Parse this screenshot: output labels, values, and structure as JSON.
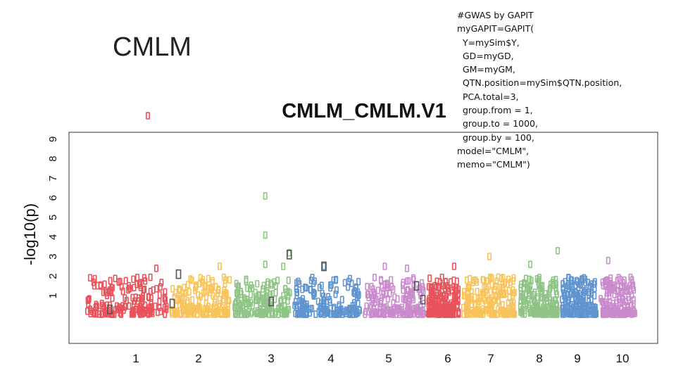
{
  "slide": {
    "title": "CMLM",
    "code_lines": [
      "#GWAS by GAPIT",
      "myGAPIT=GAPIT(",
      "  Y=mySim$Y,",
      "  GD=myGD,",
      "  GM=myGM,",
      "  QTN.position=mySim$QTN.position,",
      "  PCA.total=3,",
      "  group.from = 1,",
      "  group.to = 1000,",
      "  group.by = 100,",
      "model=\"CMLM\",",
      "memo=\"CMLM\")"
    ]
  },
  "chart_data": {
    "type": "scatter",
    "subtype": "manhattan",
    "title": "CMLM_CMLM.V1",
    "xlabel": "",
    "ylabel": "-log10(p)",
    "x_tick_labels": [
      "1",
      "2",
      "3",
      "4",
      "5",
      "6",
      "7",
      "8",
      "9",
      "10"
    ],
    "y_ticks": [
      1,
      2,
      3,
      4,
      5,
      6,
      7,
      8,
      9
    ],
    "ylim": [
      0,
      10.5
    ],
    "grid": false,
    "legend": "none",
    "colors": [
      "#e8525a",
      "#f7c35a",
      "#8fc486",
      "#5f94cf",
      "#c98bcc",
      "#e8525a",
      "#f7c35a",
      "#8fc486",
      "#5f94cf",
      "#c98bcc"
    ],
    "highlight_color": "#555555",
    "points_per_chromosome": 170,
    "peaks": [
      {
        "chromosome": 1,
        "pos": 0.75,
        "value": 10.2
      },
      {
        "chromosome": 1,
        "pos": 0.85,
        "value": 2.4
      },
      {
        "chromosome": 2,
        "pos": 0.8,
        "value": 2.5
      },
      {
        "chromosome": 3,
        "pos": 0.55,
        "value": 6.1
      },
      {
        "chromosome": 3,
        "pos": 0.55,
        "value": 4.1
      },
      {
        "chromosome": 3,
        "pos": 0.55,
        "value": 2.6
      },
      {
        "chromosome": 3,
        "pos": 0.85,
        "value": 2.5
      },
      {
        "chromosome": 3,
        "pos": 0.95,
        "value": 3.2
      },
      {
        "chromosome": 4,
        "pos": 0.45,
        "value": 2.5
      },
      {
        "chromosome": 5,
        "pos": 0.35,
        "value": 2.5
      },
      {
        "chromosome": 5,
        "pos": 0.7,
        "value": 2.4
      },
      {
        "chromosome": 6,
        "pos": 0.8,
        "value": 2.5
      },
      {
        "chromosome": 7,
        "pos": 0.5,
        "value": 3.0
      },
      {
        "chromosome": 8,
        "pos": 0.3,
        "value": 2.6
      },
      {
        "chromosome": 8,
        "pos": 0.95,
        "value": 3.3
      },
      {
        "chromosome": 10,
        "pos": 0.25,
        "value": 2.8
      }
    ],
    "highlighted_qtn": [
      {
        "chromosome": 1,
        "pos": 0.3,
        "value": 0.3
      },
      {
        "chromosome": 2,
        "pos": 0.05,
        "value": 0.6
      },
      {
        "chromosome": 2,
        "pos": 0.15,
        "value": 2.1
      },
      {
        "chromosome": 3,
        "pos": 0.65,
        "value": 0.7
      },
      {
        "chromosome": 3,
        "pos": 0.95,
        "value": 3.1
      },
      {
        "chromosome": 4,
        "pos": 0.45,
        "value": 2.5
      },
      {
        "chromosome": 5,
        "pos": 0.85,
        "value": 1.5
      },
      {
        "chromosome": 5,
        "pos": 0.95,
        "value": 0.8
      }
    ]
  }
}
